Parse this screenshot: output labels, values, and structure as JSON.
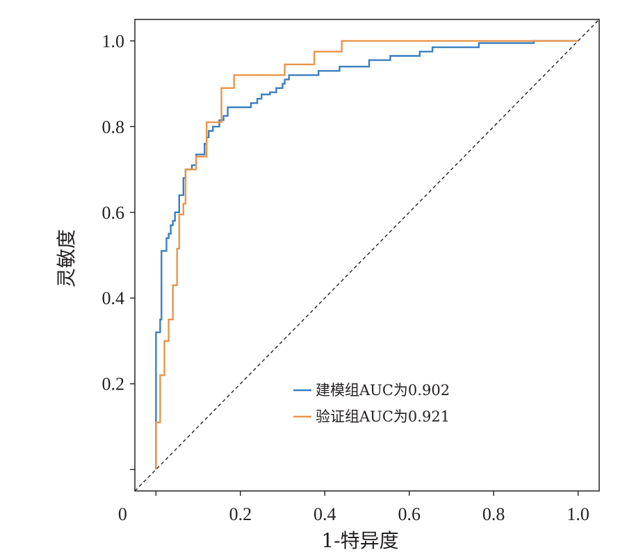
{
  "chart_data": {
    "type": "line",
    "title": "",
    "xlabel": "1-特异度",
    "ylabel": "灵敏度",
    "xlim": [
      -0.05,
      1.05
    ],
    "ylim": [
      -0.05,
      1.05
    ],
    "x_ticks": [
      {
        "value": 0,
        "label": "0"
      },
      {
        "value": 0.2,
        "label": "0.2"
      },
      {
        "value": 0.4,
        "label": "0.4"
      },
      {
        "value": 0.6,
        "label": "0.6"
      },
      {
        "value": 0.8,
        "label": "0.8"
      },
      {
        "value": 1.0,
        "label": "1.0"
      }
    ],
    "y_ticks": [
      {
        "value": 0,
        "label": ""
      },
      {
        "value": 0.2,
        "label": "0.2"
      },
      {
        "value": 0.4,
        "label": "0.4"
      },
      {
        "value": 0.6,
        "label": "0.6"
      },
      {
        "value": 0.8,
        "label": "0.8"
      },
      {
        "value": 1.0,
        "label": "1.0"
      }
    ],
    "grid": false,
    "legend_position": "bottom-right",
    "reference_line": {
      "style": "dashed",
      "from": [
        -0.05,
        -0.05
      ],
      "to": [
        1.05,
        1.05
      ],
      "color": "#231f20"
    },
    "series": [
      {
        "name": "建模组AUC为0.902",
        "color": "#3a7ebf",
        "points": [
          [
            0,
            0
          ],
          [
            0,
            0.11
          ],
          [
            0,
            0.32
          ],
          [
            0.01,
            0.32
          ],
          [
            0.01,
            0.35
          ],
          [
            0.013,
            0.35
          ],
          [
            0.013,
            0.51
          ],
          [
            0.025,
            0.51
          ],
          [
            0.025,
            0.54
          ],
          [
            0.03,
            0.54
          ],
          [
            0.03,
            0.55
          ],
          [
            0.035,
            0.55
          ],
          [
            0.035,
            0.57
          ],
          [
            0.04,
            0.57
          ],
          [
            0.04,
            0.58
          ],
          [
            0.045,
            0.58
          ],
          [
            0.045,
            0.6
          ],
          [
            0.055,
            0.6
          ],
          [
            0.055,
            0.64
          ],
          [
            0.065,
            0.64
          ],
          [
            0.065,
            0.68
          ],
          [
            0.07,
            0.68
          ],
          [
            0.07,
            0.7
          ],
          [
            0.085,
            0.7
          ],
          [
            0.085,
            0.71
          ],
          [
            0.095,
            0.71
          ],
          [
            0.095,
            0.735
          ],
          [
            0.115,
            0.735
          ],
          [
            0.115,
            0.76
          ],
          [
            0.12,
            0.76
          ],
          [
            0.12,
            0.775
          ],
          [
            0.125,
            0.775
          ],
          [
            0.125,
            0.79
          ],
          [
            0.135,
            0.79
          ],
          [
            0.135,
            0.8
          ],
          [
            0.15,
            0.8
          ],
          [
            0.15,
            0.815
          ],
          [
            0.16,
            0.815
          ],
          [
            0.16,
            0.825
          ],
          [
            0.17,
            0.825
          ],
          [
            0.17,
            0.845
          ],
          [
            0.225,
            0.845
          ],
          [
            0.225,
            0.855
          ],
          [
            0.24,
            0.855
          ],
          [
            0.24,
            0.865
          ],
          [
            0.25,
            0.865
          ],
          [
            0.25,
            0.875
          ],
          [
            0.27,
            0.875
          ],
          [
            0.27,
            0.88
          ],
          [
            0.285,
            0.88
          ],
          [
            0.285,
            0.89
          ],
          [
            0.3,
            0.89
          ],
          [
            0.3,
            0.9
          ],
          [
            0.305,
            0.9
          ],
          [
            0.305,
            0.91
          ],
          [
            0.315,
            0.91
          ],
          [
            0.315,
            0.92
          ],
          [
            0.385,
            0.92
          ],
          [
            0.385,
            0.93
          ],
          [
            0.435,
            0.93
          ],
          [
            0.435,
            0.94
          ],
          [
            0.505,
            0.94
          ],
          [
            0.505,
            0.955
          ],
          [
            0.555,
            0.955
          ],
          [
            0.555,
            0.965
          ],
          [
            0.625,
            0.965
          ],
          [
            0.625,
            0.975
          ],
          [
            0.655,
            0.975
          ],
          [
            0.655,
            0.985
          ],
          [
            0.765,
            0.985
          ],
          [
            0.765,
            0.995
          ],
          [
            0.895,
            0.995
          ],
          [
            0.895,
            1.0
          ],
          [
            1.0,
            1.0
          ]
        ]
      },
      {
        "name": "验证组AUC为0.921",
        "color": "#e9954a",
        "points": [
          [
            0,
            0
          ],
          [
            0,
            0.11
          ],
          [
            0.01,
            0.11
          ],
          [
            0.01,
            0.22
          ],
          [
            0.02,
            0.22
          ],
          [
            0.02,
            0.3
          ],
          [
            0.03,
            0.3
          ],
          [
            0.03,
            0.35
          ],
          [
            0.04,
            0.35
          ],
          [
            0.04,
            0.43
          ],
          [
            0.05,
            0.43
          ],
          [
            0.05,
            0.515
          ],
          [
            0.055,
            0.515
          ],
          [
            0.055,
            0.595
          ],
          [
            0.065,
            0.595
          ],
          [
            0.065,
            0.62
          ],
          [
            0.07,
            0.62
          ],
          [
            0.07,
            0.7
          ],
          [
            0.095,
            0.7
          ],
          [
            0.095,
            0.73
          ],
          [
            0.12,
            0.73
          ],
          [
            0.12,
            0.81
          ],
          [
            0.155,
            0.81
          ],
          [
            0.155,
            0.89
          ],
          [
            0.185,
            0.89
          ],
          [
            0.185,
            0.92
          ],
          [
            0.305,
            0.92
          ],
          [
            0.305,
            0.945
          ],
          [
            0.375,
            0.945
          ],
          [
            0.375,
            0.975
          ],
          [
            0.44,
            0.975
          ],
          [
            0.44,
            1.0
          ],
          [
            1.0,
            1.0
          ]
        ]
      }
    ]
  }
}
